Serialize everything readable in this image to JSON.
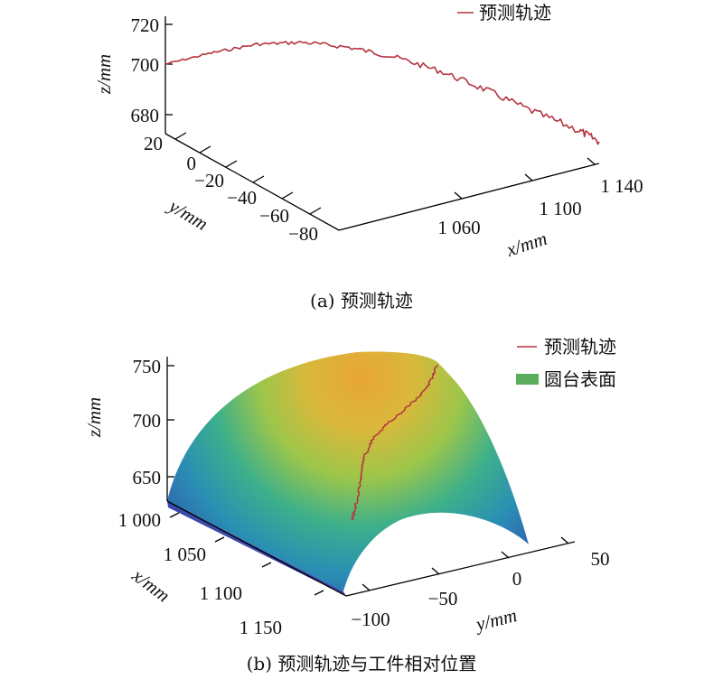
{
  "colors": {
    "trajectory": "#b5333f",
    "surface_legend": "#5aae5e",
    "axis": "#000000"
  },
  "chart_data": [
    {
      "type": "line",
      "id": "a",
      "caption": "(a) 预测轨迹",
      "legend": "预测轨迹",
      "xlabel": "x/mm",
      "ylabel": "y/mm",
      "zlabel": "z/mm",
      "x_ticks": [
        "1 060",
        "1 100",
        "1 140"
      ],
      "y_ticks": [
        "20",
        "0",
        "−20",
        "−40",
        "−60",
        "−80"
      ],
      "z_ticks": [
        "720",
        "700",
        "680"
      ],
      "x_values": [
        1000,
        1015,
        1030,
        1045,
        1060,
        1075,
        1090,
        1105,
        1120,
        1135,
        1142
      ],
      "z_values": [
        700,
        705,
        709,
        710,
        708,
        704,
        698,
        690,
        681,
        673,
        668
      ]
    },
    {
      "type": "surface",
      "id": "b",
      "caption": "(b) 预测轨迹与工件相对位置",
      "legend_items": [
        "预测轨迹",
        "圆台表面"
      ],
      "xlabel": "x/mm",
      "ylabel": "y/mm",
      "zlabel": "z/mm",
      "x_ticks": [
        "1 000",
        "1 050",
        "1 100",
        "1 150"
      ],
      "y_ticks": [
        "−100",
        "−50",
        "0",
        "50"
      ],
      "z_ticks": [
        "750",
        "700",
        "650"
      ]
    }
  ]
}
